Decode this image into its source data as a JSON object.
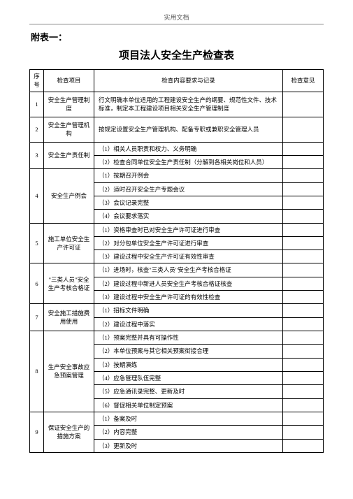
{
  "page_header": "实用文档",
  "subtitle": "附表一：",
  "title": "项目法人安全生产检查表",
  "columns": {
    "seq": "序号",
    "item": "检查项目",
    "content": "检查内容要求与记录",
    "opinion": "检查意见"
  },
  "rows": [
    {
      "seq": "1",
      "item": "安全生产管理制度",
      "content": [
        "行文明确本单位适用的工程建设安全生产的纲要、规范性文件、技术标准，制定本工程建设项目相关安全生产管理制度"
      ]
    },
    {
      "seq": "2",
      "item": "安全生产管理机构",
      "content": [
        "按规定设置安全生产管理机构、配备专职或兼职安全管理人员"
      ]
    },
    {
      "seq": "3",
      "item": "安全生产责任制",
      "content": [
        "（1）相关人员职责和权力、义务明确",
        "（2）检查合同单位安全生产责任制（分解到各相关岗位和人员）"
      ]
    },
    {
      "seq": "4",
      "item": "安全生产例会",
      "content": [
        "（1）按期召开例会",
        "（2）适时召开安全生产专题会议",
        "（3）会议记录完整",
        "（4）会议要求落实"
      ]
    },
    {
      "seq": "5",
      "item": "施工单位安全生产许可证",
      "content": [
        "（1）资格审查时已对安全生产许可证进行审查",
        "（2）对分包单位安全生产许可证进行审查",
        "（3）建设过程中安全生产许可证有效性审查"
      ]
    },
    {
      "seq": "6",
      "item": "\"三类人员\"安全生产考核合格证",
      "content": [
        "（1）进场时，核查\"三类人员\"安全生产考核合格证",
        "（2）建设过程中新进人员安全生产考核合格证核查",
        "（3）建设过程中安全生产许可证的有效性检查"
      ]
    },
    {
      "seq": "7",
      "item": "安全施工措施费用使用",
      "content": [
        "（1）招标文件明确",
        "（2）建设过程中落实"
      ]
    },
    {
      "seq": "8",
      "item": "生产安全事故应急预案管理",
      "content": [
        "（1）预案完整并具有可操作性",
        "（2）本单位预案与其它相关预案衔接合理",
        "（3）按期演练",
        "（4）应急管理队伍完整",
        "（5）应急通讯录完整、更新及时",
        "（6）督促相关单位制定预案"
      ]
    },
    {
      "seq": "9",
      "item": "保证安全生产的措施方案",
      "content": [
        "（1）备案及时",
        "（2）内容完整",
        "（3）更新及时"
      ]
    }
  ]
}
